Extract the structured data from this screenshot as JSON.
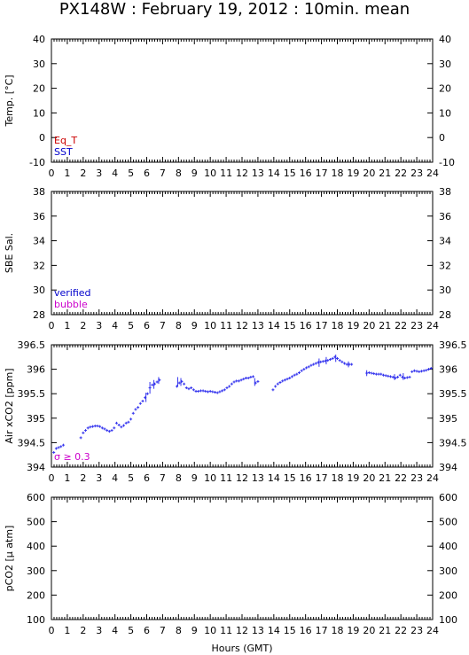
{
  "title": "PX148W : February 19, 2012 : 10min. mean",
  "chart_data": [
    {
      "type": "line",
      "ylabel": "Temp. [°C]",
      "ylim": [
        -10,
        40
      ],
      "yticks": [
        -10,
        0,
        10,
        20,
        30,
        40
      ],
      "xlim": [
        0,
        24
      ],
      "legend": [
        {
          "name": "Eq_T",
          "color": "#cc0000"
        },
        {
          "name": "SST",
          "color": "#0000cc"
        }
      ],
      "series": []
    },
    {
      "type": "line",
      "ylabel": "SBE Sal.",
      "ylim": [
        28,
        38
      ],
      "yticks": [
        28,
        30,
        32,
        34,
        36,
        38
      ],
      "xlim": [
        0,
        24
      ],
      "legend": [
        {
          "name": "verified",
          "color": "#0000cc"
        },
        {
          "name": "bubble",
          "color": "#cc00cc"
        }
      ],
      "series": []
    },
    {
      "type": "scatter",
      "ylabel": "Air xCO2 [ppm]",
      "ylim": [
        394,
        396.5
      ],
      "yticks": [
        394,
        394.5,
        395,
        395.5,
        396,
        396.5
      ],
      "xlim": [
        0,
        24
      ],
      "legend": [
        {
          "name": "σ ≥ 0.3",
          "color": "#cc00cc"
        }
      ],
      "series": [
        {
          "color": "#3333ee",
          "points": [
            [
              0.15,
              394.3
            ],
            [
              0.3,
              394.38
            ],
            [
              0.45,
              394.4
            ],
            [
              0.6,
              394.42
            ],
            [
              0.75,
              394.45
            ],
            [
              1.85,
              394.6
            ],
            [
              2.0,
              394.7
            ],
            [
              2.15,
              394.75
            ],
            [
              2.3,
              394.8
            ],
            [
              2.45,
              394.82
            ],
            [
              2.6,
              394.83
            ],
            [
              2.75,
              394.84
            ],
            [
              2.9,
              394.84
            ],
            [
              3.05,
              394.83
            ],
            [
              3.2,
              394.8
            ],
            [
              3.35,
              394.78
            ],
            [
              3.5,
              394.75
            ],
            [
              3.65,
              394.73
            ],
            [
              3.8,
              394.75
            ],
            [
              3.95,
              394.8
            ],
            [
              4.1,
              394.9
            ],
            [
              4.25,
              394.86
            ],
            [
              4.4,
              394.82
            ],
            [
              4.55,
              394.85
            ],
            [
              4.7,
              394.9
            ],
            [
              4.85,
              394.92
            ],
            [
              5.0,
              394.98
            ],
            [
              5.15,
              395.1
            ],
            [
              5.3,
              395.18
            ],
            [
              5.45,
              395.22
            ],
            [
              5.6,
              395.3
            ],
            [
              5.75,
              395.35
            ],
            [
              5.9,
              395.42
            ],
            [
              6.05,
              395.5
            ],
            [
              6.2,
              395.62
            ],
            [
              6.35,
              395.68
            ],
            [
              6.5,
              395.7
            ],
            [
              6.65,
              395.74
            ],
            [
              6.8,
              395.78
            ],
            [
              7.9,
              395.65
            ],
            [
              8.05,
              395.72
            ],
            [
              8.2,
              395.75
            ],
            [
              8.35,
              395.7
            ],
            [
              8.5,
              395.62
            ],
            [
              8.65,
              395.6
            ],
            [
              8.8,
              395.62
            ],
            [
              8.95,
              395.58
            ],
            [
              9.1,
              395.55
            ],
            [
              9.25,
              395.55
            ],
            [
              9.4,
              395.56
            ],
            [
              9.55,
              395.56
            ],
            [
              9.7,
              395.55
            ],
            [
              9.85,
              395.54
            ],
            [
              10.0,
              395.55
            ],
            [
              10.15,
              395.54
            ],
            [
              10.3,
              395.53
            ],
            [
              10.45,
              395.52
            ],
            [
              10.6,
              395.54
            ],
            [
              10.75,
              395.56
            ],
            [
              10.9,
              395.58
            ],
            [
              11.05,
              395.62
            ],
            [
              11.2,
              395.65
            ],
            [
              11.35,
              395.7
            ],
            [
              11.5,
              395.74
            ],
            [
              11.65,
              395.76
            ],
            [
              11.8,
              395.76
            ],
            [
              11.95,
              395.78
            ],
            [
              12.1,
              395.8
            ],
            [
              12.25,
              395.82
            ],
            [
              12.4,
              395.82
            ],
            [
              12.55,
              395.84
            ],
            [
              12.7,
              395.85
            ],
            [
              12.85,
              395.72
            ],
            [
              13.0,
              395.75
            ],
            [
              13.95,
              395.58
            ],
            [
              14.1,
              395.65
            ],
            [
              14.25,
              395.7
            ],
            [
              14.4,
              395.73
            ],
            [
              14.55,
              395.76
            ],
            [
              14.7,
              395.78
            ],
            [
              14.85,
              395.8
            ],
            [
              15.0,
              395.82
            ],
            [
              15.15,
              395.85
            ],
            [
              15.3,
              395.88
            ],
            [
              15.45,
              395.9
            ],
            [
              15.6,
              395.93
            ],
            [
              15.75,
              395.97
            ],
            [
              15.9,
              396.0
            ],
            [
              16.05,
              396.03
            ],
            [
              16.2,
              396.05
            ],
            [
              16.35,
              396.08
            ],
            [
              16.5,
              396.1
            ],
            [
              16.65,
              396.12
            ],
            [
              16.8,
              396.14
            ],
            [
              16.95,
              396.15
            ],
            [
              17.1,
              396.16
            ],
            [
              17.25,
              396.17
            ],
            [
              17.4,
              396.18
            ],
            [
              17.55,
              396.2
            ],
            [
              17.7,
              396.22
            ],
            [
              17.85,
              396.25
            ],
            [
              18.0,
              396.22
            ],
            [
              18.15,
              396.18
            ],
            [
              18.3,
              396.15
            ],
            [
              18.45,
              396.12
            ],
            [
              18.6,
              396.1
            ],
            [
              18.75,
              396.1
            ],
            [
              18.9,
              396.1
            ],
            [
              19.85,
              395.92
            ],
            [
              20.0,
              395.93
            ],
            [
              20.15,
              395.92
            ],
            [
              20.3,
              395.91
            ],
            [
              20.45,
              395.9
            ],
            [
              20.6,
              395.9
            ],
            [
              20.75,
              395.9
            ],
            [
              20.9,
              395.88
            ],
            [
              21.05,
              395.87
            ],
            [
              21.2,
              395.86
            ],
            [
              21.35,
              395.85
            ],
            [
              21.5,
              395.84
            ],
            [
              21.65,
              395.82
            ],
            [
              21.8,
              395.84
            ],
            [
              21.95,
              395.88
            ],
            [
              22.1,
              395.84
            ],
            [
              22.25,
              395.82
            ],
            [
              22.4,
              395.83
            ],
            [
              22.55,
              395.84
            ],
            [
              22.7,
              395.95
            ],
            [
              22.85,
              395.97
            ],
            [
              23.0,
              395.96
            ],
            [
              23.15,
              395.95
            ],
            [
              23.3,
              395.96
            ],
            [
              23.45,
              395.97
            ],
            [
              23.6,
              395.98
            ],
            [
              23.75,
              396.0
            ],
            [
              23.9,
              396.02
            ]
          ],
          "error_bars": [
            [
              5.95,
              395.33,
              395.52
            ],
            [
              6.2,
              395.5,
              395.74
            ],
            [
              6.45,
              395.6,
              395.78
            ],
            [
              6.75,
              395.7,
              395.84
            ],
            [
              7.95,
              395.64,
              395.84
            ],
            [
              8.15,
              395.66,
              395.82
            ],
            [
              12.8,
              395.66,
              395.82
            ],
            [
              16.85,
              396.05,
              396.22
            ],
            [
              17.3,
              396.1,
              396.25
            ],
            [
              17.9,
              396.15,
              396.3
            ],
            [
              18.7,
              396.04,
              396.16
            ],
            [
              19.85,
              395.86,
              395.98
            ],
            [
              21.6,
              395.78,
              395.9
            ],
            [
              22.15,
              395.78,
              395.92
            ]
          ]
        }
      ]
    },
    {
      "type": "line",
      "ylabel": "pCO2 [μ atm]",
      "ylim": [
        100,
        600
      ],
      "yticks": [
        100,
        200,
        300,
        400,
        500,
        600
      ],
      "xlim": [
        0,
        24
      ],
      "xlabel": "Hours (GMT)",
      "series": []
    }
  ]
}
